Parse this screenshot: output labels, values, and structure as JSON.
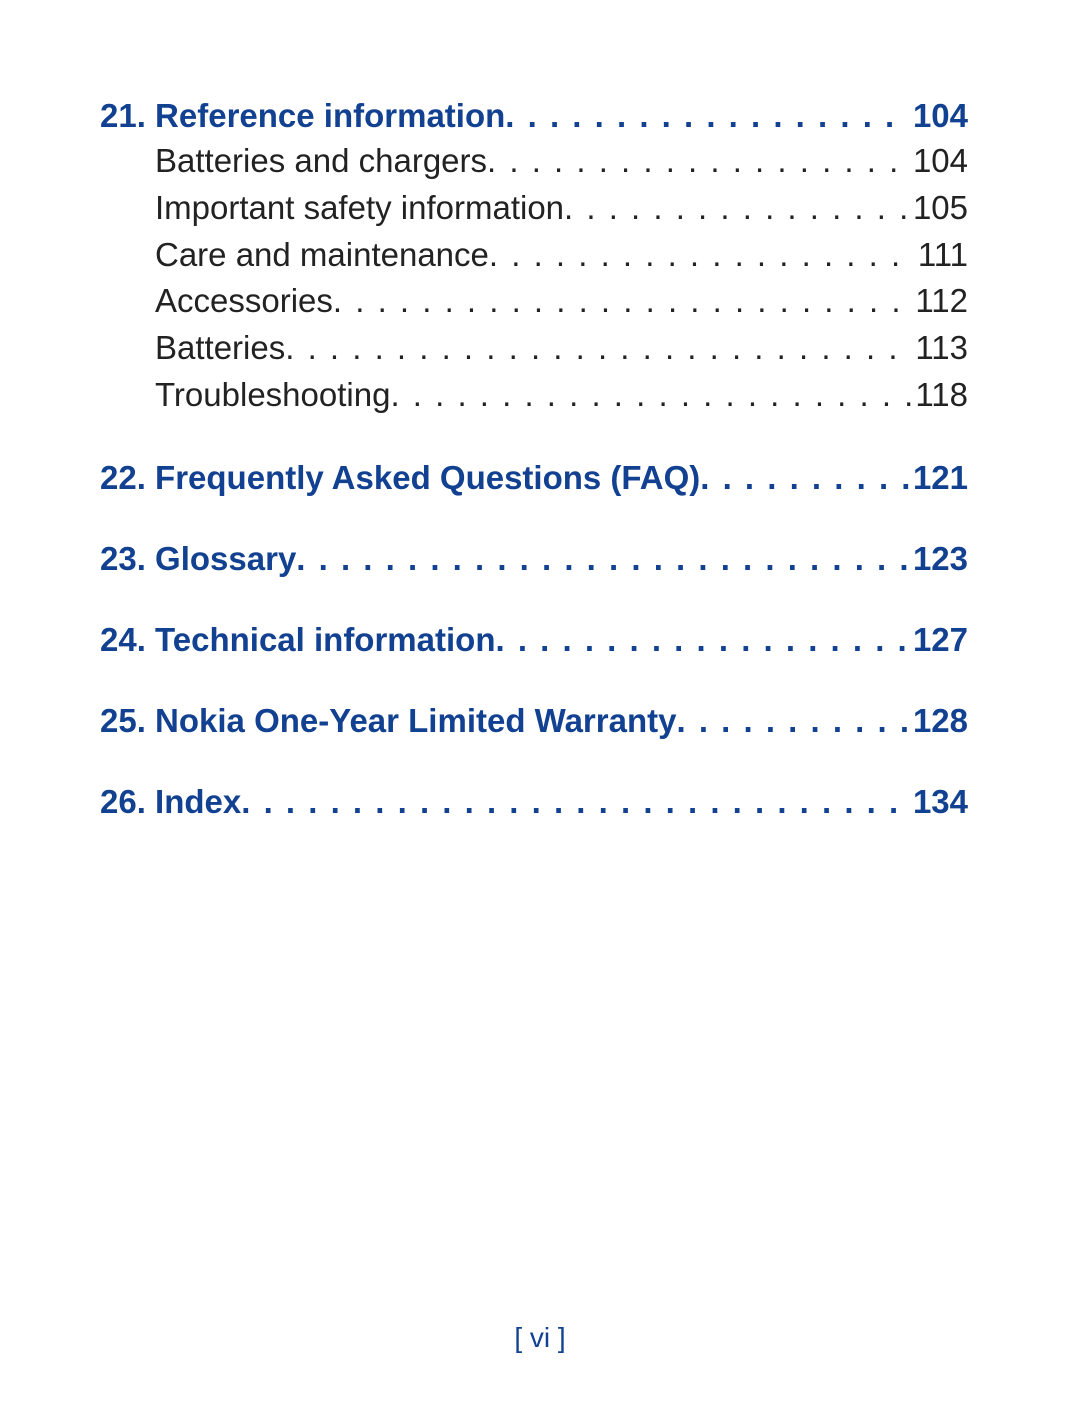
{
  "colors": {
    "chapter": "#124191",
    "sub": "#222222",
    "footer": "#124191",
    "background": "#ffffff"
  },
  "typography": {
    "font_family": "Arial, Helvetica, sans-serif",
    "chapter_fontsize": 33,
    "chapter_fontweight": "bold",
    "sub_fontsize": 33,
    "sub_fontweight": "normal",
    "footer_fontsize": 28
  },
  "entries": [
    {
      "kind": "chapter",
      "num": "21. ",
      "title": "Reference information",
      "page": "104"
    },
    {
      "kind": "sub",
      "title": "Batteries and chargers",
      "page": "104"
    },
    {
      "kind": "sub",
      "title": "Important safety information",
      "page": "105"
    },
    {
      "kind": "sub",
      "title": "Care and maintenance",
      "page": "111"
    },
    {
      "kind": "sub",
      "title": "Accessories",
      "page": "112"
    },
    {
      "kind": "sub",
      "title": "Batteries",
      "page": "113"
    },
    {
      "kind": "sub",
      "title": "Troubleshooting",
      "page": "118"
    },
    {
      "kind": "chapter",
      "num": "22. ",
      "title": "Frequently Asked Questions (FAQ)",
      "page": "121"
    },
    {
      "kind": "chapter",
      "num": "23. ",
      "title": "Glossary",
      "page": "123"
    },
    {
      "kind": "chapter",
      "num": "24. ",
      "title": "Technical information",
      "page": "127"
    },
    {
      "kind": "chapter",
      "num": "25. ",
      "title": "Nokia One-Year Limited Warranty",
      "page": "128"
    },
    {
      "kind": "chapter",
      "num": "26. ",
      "title": "Index",
      "page": "134"
    }
  ],
  "footer": "[ vi ]"
}
